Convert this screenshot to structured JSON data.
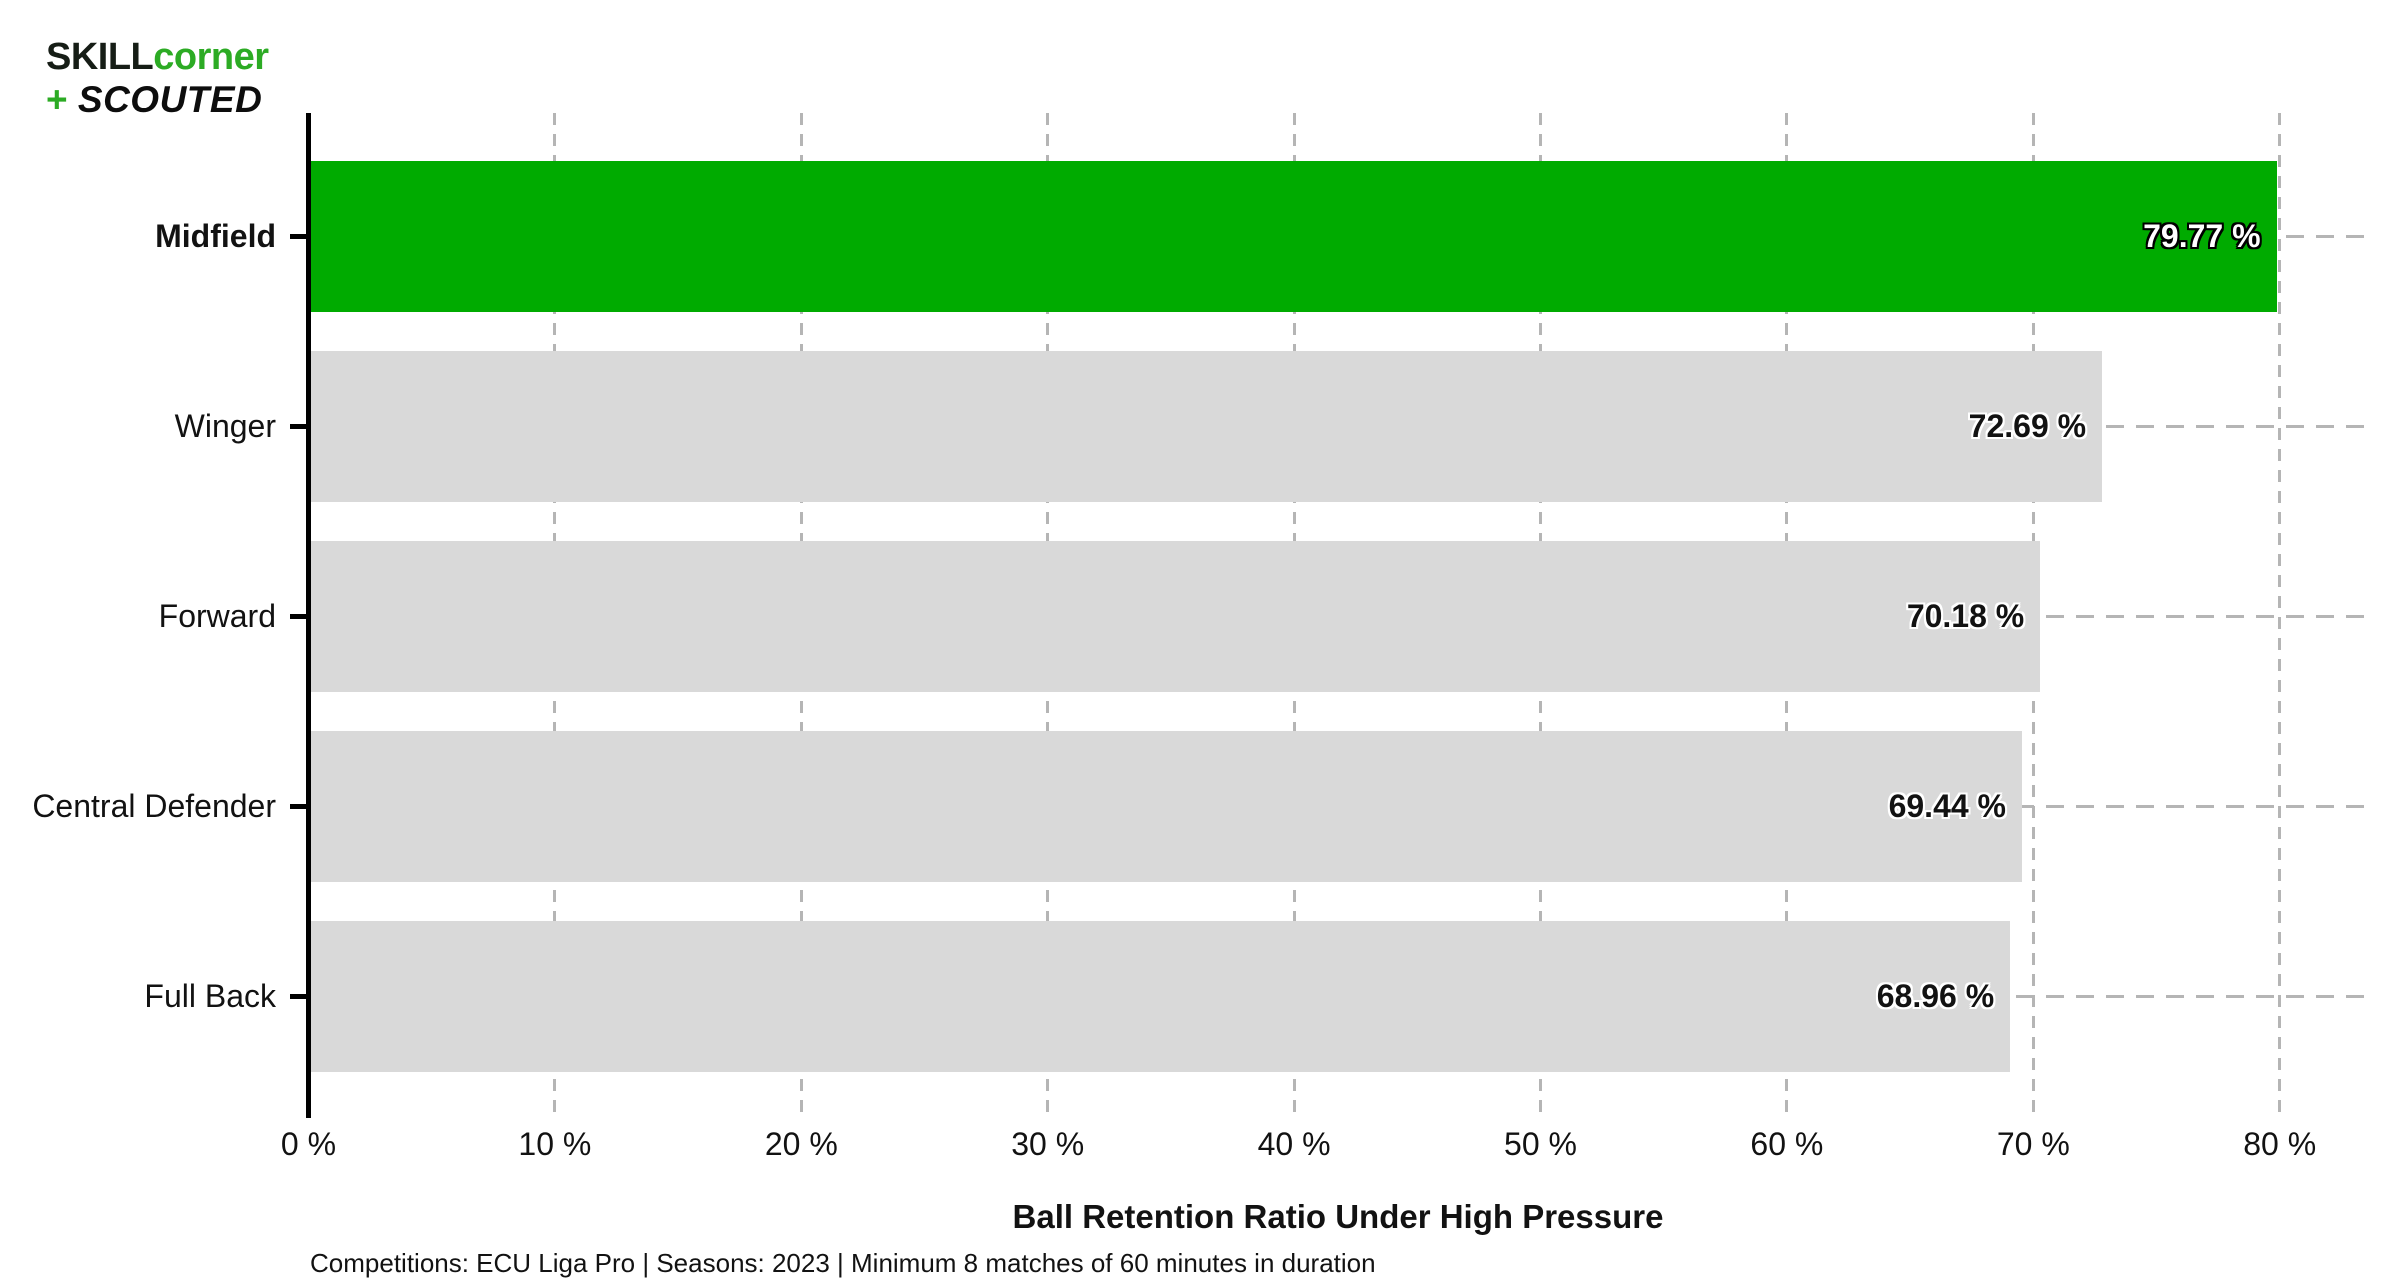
{
  "logo": {
    "line1_black": "SKILL",
    "line1_green": "corner",
    "line2_plus": "+",
    "line2_text": "SCOUTED"
  },
  "chart_data": {
    "type": "bar",
    "orientation": "horizontal",
    "title": "",
    "xlabel": "Ball Retention Ratio Under High Pressure",
    "footnote": "Competitions: ECU Liga Pro | Seasons: 2023 | Minimum 8 matches of 60 minutes in duration",
    "categories": [
      "Midfield",
      "Winger",
      "Forward",
      "Central Defender",
      "Full Back"
    ],
    "values": [
      79.77,
      72.69,
      70.18,
      69.44,
      68.96
    ],
    "value_labels": [
      "79.77 %",
      "72.69 %",
      "70.18 %",
      "69.44 %",
      "68.96 %"
    ],
    "highlight_index": 0,
    "highlight_category": "Midfield",
    "x_ticks": [
      {
        "value": 0,
        "label": "0 %"
      },
      {
        "value": 10,
        "label": "10 %"
      },
      {
        "value": 20,
        "label": "20 %"
      },
      {
        "value": 30,
        "label": "30 %"
      },
      {
        "value": 40,
        "label": "40 %"
      },
      {
        "value": 50,
        "label": "50 %"
      },
      {
        "value": 60,
        "label": "60 %"
      },
      {
        "value": 70,
        "label": "70 %"
      },
      {
        "value": 80,
        "label": "80 %"
      }
    ],
    "xlim": [
      0,
      83.6
    ],
    "grid": "dashed",
    "legend": "none",
    "colors": {
      "highlight_bar": "#00ab00",
      "bar": "#d9d9d9",
      "gridline": "#b5b5b5",
      "axis": "#000000",
      "text": "#121212"
    }
  }
}
